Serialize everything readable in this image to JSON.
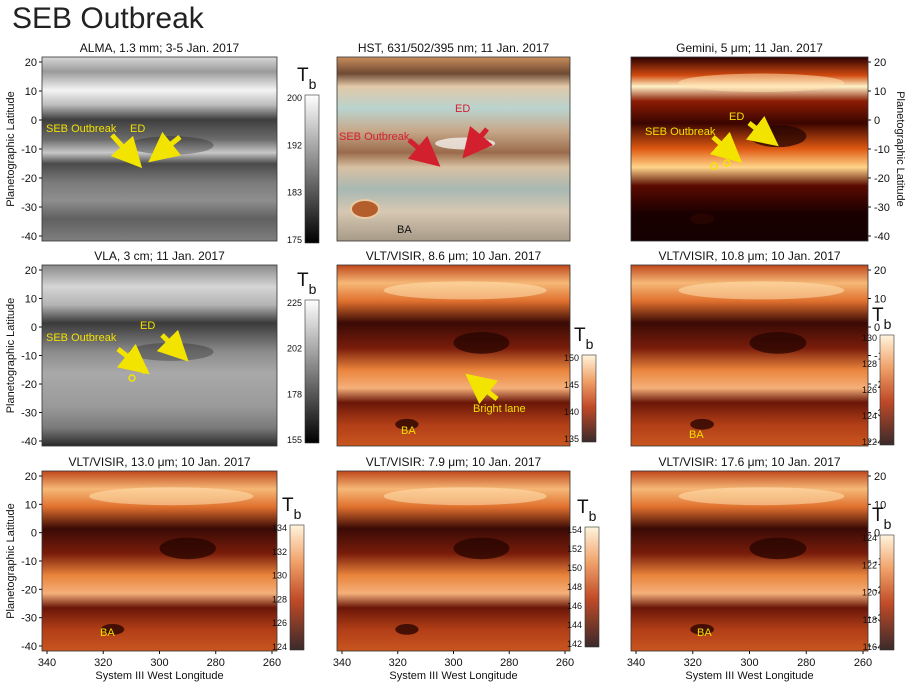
{
  "figure": {
    "title": "SEB Outbreak",
    "x_axis_label": "System III West Longitude",
    "y_axis_label": "Planetographic Latitude",
    "x_ticks": [
      "340",
      "320",
      "300",
      "280",
      "260"
    ],
    "y_ticks": [
      "20",
      "10",
      "0",
      "-10",
      "-20",
      "-30",
      "-40"
    ],
    "colorbar_symbol": "T",
    "colorbar_subscript": "b",
    "colors": {
      "heat_dark": "#1a0000",
      "heat_mid": "#c0471a",
      "heat_light": "#ffe9c0",
      "arrow_yellow": "#f3e400",
      "arrow_red": "#d3202e",
      "label_yellow": "#f1e000"
    }
  },
  "panels": [
    {
      "id": "alma",
      "title": "ALMA, 1.3 mm; 3-5 Jan. 2017",
      "colormap": "gray",
      "cbar_ticks": [
        "200",
        "192",
        "183",
        "175"
      ],
      "annotations": [
        {
          "text": "SEB Outbreak",
          "color": "#f1e000"
        },
        {
          "text": "ED",
          "color": "#f1e000"
        }
      ]
    },
    {
      "id": "hst",
      "title": "HST, 631/502/395 nm; 11 Jan. 2017",
      "colormap": "rgb",
      "cbar_ticks": [],
      "annotations": [
        {
          "text": "SEB Outbreak",
          "color": "#d3202e"
        },
        {
          "text": "ED",
          "color": "#d3202e"
        },
        {
          "text": "BA",
          "color": "#111111"
        }
      ]
    },
    {
      "id": "gemini",
      "title": "Gemini, 5 μm; 11 Jan. 2017",
      "colormap": "heat",
      "cbar_ticks": [],
      "annotations": [
        {
          "text": "SEB Outbreak",
          "color": "#f1e000"
        },
        {
          "text": "ED",
          "color": "#f1e000"
        }
      ]
    },
    {
      "id": "vla",
      "title": "VLA, 3 cm; 11 Jan. 2017",
      "colormap": "gray",
      "cbar_ticks": [
        "225",
        "202",
        "178",
        "155"
      ],
      "annotations": [
        {
          "text": "SEB Outbreak",
          "color": "#f1e000"
        },
        {
          "text": "ED",
          "color": "#f1e000"
        }
      ]
    },
    {
      "id": "visir86",
      "title": "VLT/VISIR, 8.6 μm; 10 Jan. 2017",
      "colormap": "heat",
      "cbar_ticks": [
        "150",
        "145",
        "140",
        "135"
      ],
      "annotations": [
        {
          "text": "Bright lane",
          "color": "#f1e000"
        },
        {
          "text": "BA",
          "color": "#f1e000"
        }
      ]
    },
    {
      "id": "visir108",
      "title": "VLT/VISIR, 10.8 μm; 10 Jan. 2017",
      "colormap": "heat",
      "cbar_ticks": [
        "130",
        "128",
        "126",
        "124",
        "122"
      ],
      "annotations": [
        {
          "text": "BA",
          "color": "#f1e000"
        }
      ]
    },
    {
      "id": "visir130",
      "title": "VLT/VISIR, 13.0 μm; 10 Jan. 2017",
      "colormap": "heat",
      "cbar_ticks": [
        "134",
        "132",
        "130",
        "128",
        "126",
        "124"
      ],
      "annotations": [
        {
          "text": "BA",
          "color": "#f1e000"
        }
      ]
    },
    {
      "id": "visir79",
      "title": "VLT/VISIR: 7.9 μm; 10 Jan. 2017",
      "colormap": "heat",
      "cbar_ticks": [
        "154",
        "152",
        "150",
        "148",
        "146",
        "144",
        "142"
      ],
      "annotations": []
    },
    {
      "id": "visir176",
      "title": "VLT/VISIR: 17.6 μm; 10 Jan. 2017",
      "colormap": "heat",
      "cbar_ticks": [
        "124",
        "122",
        "120",
        "118",
        "116"
      ],
      "annotations": [
        {
          "text": "BA",
          "color": "#f1e000"
        }
      ]
    }
  ]
}
